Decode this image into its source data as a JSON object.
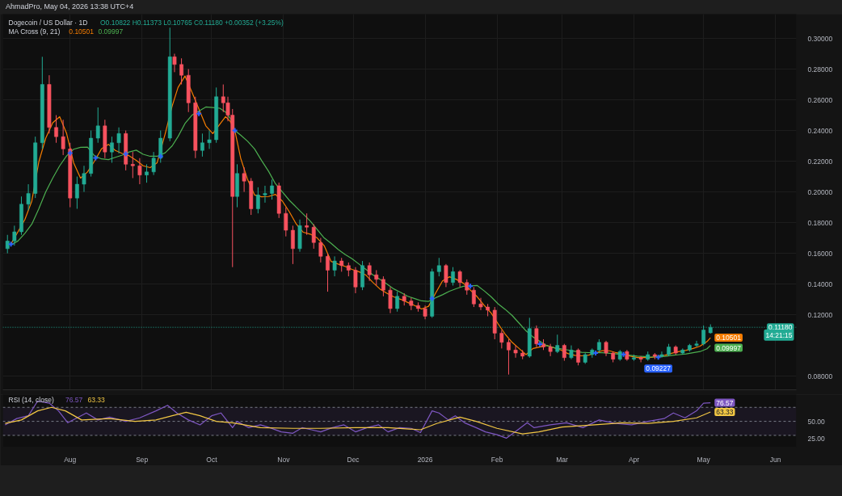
{
  "chart_data": [
    {
      "type": "candlestick",
      "title": "Dogecoin / US Dollar · 1D",
      "subtitle": "O0.10822 H0.11373 L0.10765 C0.11180 +0.00352 (+3.25%)",
      "legend_title": "MA Cross (9, 21)",
      "legend": "top left",
      "annotations": [
        "AhmadPro, May 04, 2026 13:38 UTC+4"
      ],
      "x": [
        "2025-07-05",
        "2025-07-08",
        "2025-07-11",
        "2025-07-14",
        "2025-07-17",
        "2025-07-20",
        "2025-07-23",
        "2025-07-26",
        "2025-07-29",
        "2025-08-01",
        "2025-08-04",
        "2025-08-07",
        "2025-08-10",
        "2025-08-13",
        "2025-08-16",
        "2025-08-19",
        "2025-08-22",
        "2025-08-25",
        "2025-08-28",
        "2025-08-31",
        "2025-09-03",
        "2025-09-06",
        "2025-09-09",
        "2025-09-13",
        "2025-09-15",
        "2025-09-18",
        "2025-09-21",
        "2025-09-24",
        "2025-09-27",
        "2025-09-30",
        "2025-10-03",
        "2025-10-06",
        "2025-10-08",
        "2025-10-10",
        "2025-10-12",
        "2025-10-15",
        "2025-10-18",
        "2025-10-21",
        "2025-10-24",
        "2025-10-27",
        "2025-10-30",
        "2025-11-02",
        "2025-11-05",
        "2025-11-08",
        "2025-11-11",
        "2025-11-14",
        "2025-11-17",
        "2025-11-20",
        "2025-11-23",
        "2025-11-26",
        "2025-11-29",
        "2025-12-02",
        "2025-12-05",
        "2025-12-08",
        "2025-12-11",
        "2025-12-14",
        "2025-12-17",
        "2025-12-20",
        "2025-12-23",
        "2025-12-26",
        "2025-12-29",
        "2026-01-01",
        "2026-01-04",
        "2026-01-07",
        "2026-01-10",
        "2026-01-13",
        "2026-01-16",
        "2026-01-19",
        "2026-01-22",
        "2026-01-25",
        "2026-01-28",
        "2026-01-31",
        "2026-02-03",
        "2026-02-06",
        "2026-02-09",
        "2026-02-12",
        "2026-02-15",
        "2026-02-18",
        "2026-02-21",
        "2026-02-24",
        "2026-02-27",
        "2026-03-02",
        "2026-03-05",
        "2026-03-08",
        "2026-03-11",
        "2026-03-14",
        "2026-03-17",
        "2026-03-20",
        "2026-03-23",
        "2026-03-26",
        "2026-03-29",
        "2026-04-01",
        "2026-04-04",
        "2026-04-07",
        "2026-04-10",
        "2026-04-13",
        "2026-04-16",
        "2026-04-19",
        "2026-04-22",
        "2026-04-25",
        "2026-04-28",
        "2026-05-01",
        "2026-05-04"
      ],
      "ohlc": [
        [
          0.163,
          0.172,
          0.16,
          0.168
        ],
        [
          0.168,
          0.178,
          0.165,
          0.174
        ],
        [
          0.174,
          0.197,
          0.172,
          0.192
        ],
        [
          0.192,
          0.205,
          0.188,
          0.199
        ],
        [
          0.199,
          0.236,
          0.196,
          0.232
        ],
        [
          0.232,
          0.288,
          0.228,
          0.27
        ],
        [
          0.27,
          0.276,
          0.238,
          0.242
        ],
        [
          0.242,
          0.25,
          0.232,
          0.236
        ],
        [
          0.236,
          0.247,
          0.224,
          0.228
        ],
        [
          0.228,
          0.232,
          0.19,
          0.196
        ],
        [
          0.196,
          0.21,
          0.189,
          0.205
        ],
        [
          0.205,
          0.217,
          0.2,
          0.212
        ],
        [
          0.212,
          0.24,
          0.21,
          0.235
        ],
        [
          0.235,
          0.255,
          0.232,
          0.243
        ],
        [
          0.243,
          0.247,
          0.222,
          0.226
        ],
        [
          0.226,
          0.236,
          0.219,
          0.232
        ],
        [
          0.232,
          0.242,
          0.225,
          0.238
        ],
        [
          0.238,
          0.24,
          0.214,
          0.218
        ],
        [
          0.218,
          0.226,
          0.209,
          0.217
        ],
        [
          0.217,
          0.222,
          0.205,
          0.211
        ],
        [
          0.211,
          0.218,
          0.206,
          0.213
        ],
        [
          0.213,
          0.226,
          0.211,
          0.222
        ],
        [
          0.222,
          0.24,
          0.219,
          0.235
        ],
        [
          0.235,
          0.307,
          0.233,
          0.288
        ],
        [
          0.288,
          0.29,
          0.278,
          0.283
        ],
        [
          0.283,
          0.287,
          0.27,
          0.276
        ],
        [
          0.276,
          0.28,
          0.252,
          0.258
        ],
        [
          0.258,
          0.262,
          0.222,
          0.227
        ],
        [
          0.227,
          0.238,
          0.223,
          0.232
        ],
        [
          0.232,
          0.24,
          0.228,
          0.234
        ],
        [
          0.234,
          0.268,
          0.232,
          0.262
        ],
        [
          0.262,
          0.27,
          0.252,
          0.258
        ],
        [
          0.258,
          0.262,
          0.246,
          0.25
        ],
        [
          0.25,
          0.254,
          0.151,
          0.197
        ],
        [
          0.197,
          0.218,
          0.19,
          0.212
        ],
        [
          0.212,
          0.216,
          0.2,
          0.207
        ],
        [
          0.207,
          0.209,
          0.185,
          0.189
        ],
        [
          0.189,
          0.203,
          0.186,
          0.198
        ],
        [
          0.198,
          0.204,
          0.193,
          0.199
        ],
        [
          0.199,
          0.208,
          0.195,
          0.204
        ],
        [
          0.204,
          0.206,
          0.183,
          0.186
        ],
        [
          0.186,
          0.19,
          0.171,
          0.175
        ],
        [
          0.175,
          0.178,
          0.153,
          0.163
        ],
        [
          0.163,
          0.182,
          0.161,
          0.178
        ],
        [
          0.178,
          0.186,
          0.172,
          0.177
        ],
        [
          0.177,
          0.179,
          0.163,
          0.167
        ],
        [
          0.167,
          0.17,
          0.154,
          0.158
        ],
        [
          0.158,
          0.16,
          0.135,
          0.149
        ],
        [
          0.149,
          0.158,
          0.145,
          0.155
        ],
        [
          0.155,
          0.157,
          0.148,
          0.152
        ],
        [
          0.152,
          0.154,
          0.145,
          0.149
        ],
        [
          0.149,
          0.151,
          0.134,
          0.138
        ],
        [
          0.138,
          0.155,
          0.136,
          0.152
        ],
        [
          0.152,
          0.154,
          0.142,
          0.146
        ],
        [
          0.146,
          0.149,
          0.139,
          0.143
        ],
        [
          0.143,
          0.145,
          0.132,
          0.136
        ],
        [
          0.136,
          0.138,
          0.121,
          0.124
        ],
        [
          0.124,
          0.135,
          0.122,
          0.132
        ],
        [
          0.132,
          0.134,
          0.126,
          0.129
        ],
        [
          0.129,
          0.131,
          0.123,
          0.126
        ],
        [
          0.126,
          0.128,
          0.122,
          0.124
        ],
        [
          0.124,
          0.126,
          0.117,
          0.119
        ],
        [
          0.119,
          0.15,
          0.118,
          0.148
        ],
        [
          0.148,
          0.157,
          0.145,
          0.152
        ],
        [
          0.152,
          0.153,
          0.138,
          0.141
        ],
        [
          0.141,
          0.151,
          0.139,
          0.148
        ],
        [
          0.148,
          0.149,
          0.138,
          0.141
        ],
        [
          0.141,
          0.143,
          0.133,
          0.136
        ],
        [
          0.136,
          0.138,
          0.125,
          0.127
        ],
        [
          0.127,
          0.131,
          0.123,
          0.125
        ],
        [
          0.125,
          0.127,
          0.119,
          0.123
        ],
        [
          0.123,
          0.125,
          0.104,
          0.108
        ],
        [
          0.108,
          0.11,
          0.098,
          0.102
        ],
        [
          0.102,
          0.104,
          0.081,
          0.097
        ],
        [
          0.097,
          0.1,
          0.092,
          0.095
        ],
        [
          0.095,
          0.097,
          0.091,
          0.093
        ],
        [
          0.093,
          0.118,
          0.092,
          0.111
        ],
        [
          0.111,
          0.113,
          0.099,
          0.101
        ],
        [
          0.101,
          0.104,
          0.097,
          0.099
        ],
        [
          0.099,
          0.101,
          0.093,
          0.096
        ],
        [
          0.096,
          0.107,
          0.095,
          0.1
        ],
        [
          0.1,
          0.101,
          0.09,
          0.092
        ],
        [
          0.092,
          0.1,
          0.091,
          0.097
        ],
        [
          0.097,
          0.098,
          0.087,
          0.089
        ],
        [
          0.089,
          0.095,
          0.088,
          0.094
        ],
        [
          0.094,
          0.098,
          0.092,
          0.097
        ],
        [
          0.097,
          0.104,
          0.096,
          0.102
        ],
        [
          0.102,
          0.103,
          0.093,
          0.095
        ],
        [
          0.095,
          0.096,
          0.089,
          0.091
        ],
        [
          0.091,
          0.097,
          0.09,
          0.096
        ],
        [
          0.096,
          0.097,
          0.09,
          0.091
        ],
        [
          0.091,
          0.094,
          0.09,
          0.092
        ],
        [
          0.092,
          0.093,
          0.089,
          0.091
        ],
        [
          0.091,
          0.096,
          0.09,
          0.094
        ],
        [
          0.094,
          0.095,
          0.091,
          0.093
        ],
        [
          0.093,
          0.096,
          0.092,
          0.094
        ],
        [
          0.094,
          0.101,
          0.093,
          0.099
        ],
        [
          0.099,
          0.1,
          0.094,
          0.095
        ],
        [
          0.095,
          0.098,
          0.094,
          0.097
        ],
        [
          0.097,
          0.101,
          0.096,
          0.1
        ],
        [
          0.1,
          0.103,
          0.099,
          0.101
        ],
        [
          0.101,
          0.113,
          0.1,
          0.11
        ],
        [
          0.10822,
          0.11373,
          0.10765,
          0.1118
        ]
      ],
      "colors": [
        "#22ab94",
        "#22ab94",
        "#22ab94",
        "#22ab94",
        "#22ab94",
        "#22ab94",
        "#f7525f",
        "#f7525f",
        "#f7525f",
        "#f7525f",
        "#22ab94",
        "#22ab94",
        "#22ab94",
        "#22ab94",
        "#f7525f",
        "#22ab94",
        "#22ab94",
        "#f7525f",
        "#f7525f",
        "#f7525f",
        "#22ab94",
        "#22ab94",
        "#22ab94",
        "#22ab94",
        "#f7525f",
        "#f7525f",
        "#f7525f",
        "#f7525f",
        "#22ab94",
        "#22ab94",
        "#22ab94",
        "#f7525f",
        "#f7525f",
        "#f7525f",
        "#22ab94",
        "#f7525f",
        "#f7525f",
        "#22ab94",
        "#22ab94",
        "#22ab94",
        "#f7525f",
        "#f7525f",
        "#f7525f",
        "#22ab94",
        "#f7525f",
        "#f7525f",
        "#f7525f",
        "#f7525f",
        "#22ab94",
        "#f7525f",
        "#f7525f",
        "#f7525f",
        "#22ab94",
        "#f7525f",
        "#f7525f",
        "#f7525f",
        "#f7525f",
        "#22ab94",
        "#f7525f",
        "#f7525f",
        "#f7525f",
        "#f7525f",
        "#22ab94",
        "#22ab94",
        "#f7525f",
        "#22ab94",
        "#f7525f",
        "#f7525f",
        "#f7525f",
        "#f7525f",
        "#f7525f",
        "#f7525f",
        "#f7525f",
        "#f7525f",
        "#f7525f",
        "#f7525f",
        "#22ab94",
        "#f7525f",
        "#f7525f",
        "#f7525f",
        "#22ab94",
        "#f7525f",
        "#22ab94",
        "#f7525f",
        "#22ab94",
        "#22ab94",
        "#22ab94",
        "#f7525f",
        "#f7525f",
        "#22ab94",
        "#f7525f",
        "#22ab94",
        "#f7525f",
        "#22ab94",
        "#f7525f",
        "#22ab94",
        "#22ab94",
        "#f7525f",
        "#22ab94",
        "#22ab94",
        "#22ab94",
        "#22ab94",
        "#22ab94"
      ],
      "series": [
        {
          "type": "line",
          "name": "0.10501",
          "color": "#f57c00",
          "x": [
            "2025-07-06T12:00",
            "2025-07-09T12:00",
            "2025-07-12T12:00",
            "2025-07-15T12:00",
            "2025-07-18T12:00",
            "2025-07-21T12:00",
            "2025-07-24T12:00",
            "2025-07-27T12:00",
            "2025-07-30T12:00",
            "2025-08-02T12:00",
            "2025-08-05T12:00",
            "2025-08-08T12:00",
            "2025-08-11T12:00",
            "2025-08-14T12:00",
            "2025-08-17T12:00",
            "2025-08-20T12:00",
            "2025-08-23T12:00",
            "2025-08-26T12:00",
            "2025-08-29T12:00",
            "2025-09-01T12:00",
            "2025-09-04T12:00",
            "2025-09-07T12:00",
            "2025-09-11",
            "2025-09-14",
            "2025-09-16T12:00",
            "2025-09-19T12:00",
            "2025-09-22T12:00",
            "2025-09-28T12:00",
            "2025-10-01T12:00",
            "2025-10-04T12:00",
            "2025-10-07",
            "2025-10-09",
            "2025-10-11",
            "2025-10-13T12:00",
            "2025-10-16T12:00",
            "2025-10-19T12:00",
            "2025-10-22T12:00",
            "2025-10-25T12:00",
            "2025-10-28T12:00",
            "2025-10-31T12:00",
            "2025-11-03T12:00",
            "2025-11-06T12:00",
            "2025-11-09T12:00",
            "2025-11-12T12:00",
            "2025-11-15T12:00",
            "2025-11-18T12:00",
            "2025-11-21T12:00",
            "2025-11-24T12:00",
            "2025-11-27T12:00",
            "2025-11-30T12:00",
            "2025-12-03T12:00",
            "2025-12-06T12:00",
            "2025-12-09T12:00",
            "2025-12-12T12:00",
            "2025-12-15T12:00",
            "2025-12-18T12:00",
            "2025-12-21T12:00",
            "2025-12-24T12:00",
            "2025-12-27T12:00",
            "2025-12-30T12:00",
            "2026-01-02T12:00",
            "2026-01-05T12:00",
            "2026-01-08T12:00",
            "2026-01-11T12:00",
            "2026-01-14T12:00",
            "2026-01-17T12:00",
            "2026-01-23T12:00",
            "2026-01-26T12:00",
            "2026-01-29T12:00",
            "2026-02-01T12:00",
            "2026-02-04T12:00",
            "2026-02-07T12:00",
            "2026-02-10T12:00",
            "2026-02-13T12:00",
            "2026-02-16T12:00",
            "2026-02-22T12:00",
            "2026-02-25T12:00",
            "2026-02-28T12:00",
            "2026-03-03T12:00",
            "2026-03-06T12:00",
            "2026-03-09T12:00",
            "2026-03-12T12:00",
            "2026-03-18T12:00",
            "2026-03-21T12:00",
            "2026-03-24T12:00",
            "2026-03-30T12:00",
            "2026-04-02T12:00",
            "2026-04-05T12:00",
            "2026-04-08T12:00",
            "2026-04-14T12:00",
            "2026-04-17T12:00",
            "2026-04-20T12:00",
            "2026-04-23T12:00",
            "2026-04-26T12:00",
            "2026-04-29T12:00",
            "2026-05-02T12:00",
            "2026-05-04"
          ],
          "values": [
            0.166,
            0.174,
            0.182,
            0.194,
            0.2195,
            0.235,
            0.245,
            0.249,
            0.238,
            0.219,
            0.209,
            0.213,
            0.22,
            0.228,
            0.231,
            0.227,
            0.225,
            0.2235,
            0.2205,
            0.217,
            0.2158,
            0.219,
            0.238,
            0.256,
            0.268,
            0.2755,
            0.265,
            0.243,
            0.238,
            0.244,
            0.249,
            0.246,
            0.24,
            0.222,
            0.208,
            0.198,
            0.1968,
            0.197,
            0.1984,
            0.194,
            0.187,
            0.179,
            0.1737,
            0.1725,
            0.17,
            0.165,
            0.1547,
            0.153,
            0.1515,
            0.1495,
            0.148,
            0.1458,
            0.141,
            0.1368,
            0.134,
            0.1316,
            0.13,
            0.128,
            0.126,
            0.1237,
            0.1255,
            0.134,
            0.142,
            0.1447,
            0.143,
            0.1405,
            0.1316,
            0.126,
            0.121,
            0.114,
            0.1074,
            0.102,
            0.098,
            0.094,
            0.098,
            0.1,
            0.0985,
            0.097,
            0.0947,
            0.0935,
            0.0932,
            0.0937,
            0.0966,
            0.0965,
            0.0952,
            0.093,
            0.0921,
            0.0921,
            0.0922,
            0.0937,
            0.095,
            0.096,
            0.0968,
            0.098,
            0.0995,
            0.1025,
            0.10501
          ],
          "value_labels": [
            null,
            null,
            null,
            null,
            null,
            null,
            null,
            null,
            null,
            null,
            null,
            null,
            null,
            null,
            null,
            null,
            null,
            null,
            null,
            null,
            null,
            null,
            null,
            null,
            null,
            null,
            null,
            null,
            null,
            null,
            null,
            null,
            null,
            null,
            null,
            null,
            null,
            null,
            null,
            null,
            null,
            null,
            null,
            null,
            null,
            null,
            null,
            null,
            null,
            null,
            null,
            null,
            null,
            null,
            null,
            null,
            null,
            null,
            null,
            null,
            null,
            null,
            null,
            null,
            null,
            null,
            null,
            null,
            null,
            null,
            null,
            null,
            null,
            null,
            null,
            null,
            null,
            null,
            null,
            null,
            null,
            null,
            null,
            null,
            null,
            null,
            null,
            null,
            null,
            null,
            null,
            null,
            null,
            null,
            null,
            null,
            "0.10501"
          ]
        },
        {
          "type": "line",
          "name": "0.09997",
          "color": "#4caf50",
          "x": [
            "2025-07-06T12:00",
            "2025-07-09T12:00",
            "2025-07-12T12:00",
            "2025-07-15T12:00",
            "2025-07-18T12:00",
            "2025-07-21T12:00",
            "2025-07-24T12:00",
            "2025-07-27T12:00",
            "2025-07-30T12:00",
            "2025-08-02T12:00",
            "2025-08-05T12:00",
            "2025-08-08T12:00",
            "2025-08-11T12:00",
            "2025-08-14T12:00",
            "2025-08-17T12:00",
            "2025-08-20T12:00",
            "2025-08-23T12:00",
            "2025-08-26T12:00",
            "2025-08-29T12:00",
            "2025-09-01T12:00",
            "2025-09-04T12:00",
            "2025-09-07T12:00",
            "2025-09-11",
            "2025-09-14",
            "2025-09-16T12:00",
            "2025-09-19T12:00",
            "2025-09-22T12:00",
            "2025-09-28T12:00",
            "2025-10-01T12:00",
            "2025-10-04T12:00",
            "2025-10-07",
            "2025-10-09",
            "2025-10-11",
            "2025-10-13T12:00",
            "2025-10-16T12:00",
            "2025-10-19T12:00",
            "2025-10-22T12:00",
            "2025-10-25T12:00",
            "2025-10-28T12:00",
            "2025-10-31T12:00",
            "2025-11-03T12:00",
            "2025-11-06T12:00",
            "2025-11-09T12:00",
            "2025-11-12T12:00",
            "2025-11-15T12:00",
            "2025-11-18T12:00",
            "2025-11-21T12:00",
            "2025-11-24T12:00",
            "2025-11-27T12:00",
            "2025-11-30T12:00",
            "2025-12-03T12:00",
            "2025-12-06T12:00",
            "2025-12-09T12:00",
            "2025-12-12T12:00",
            "2025-12-15T12:00",
            "2025-12-18T12:00",
            "2025-12-21T12:00",
            "2025-12-24T12:00",
            "2025-12-27T12:00",
            "2025-12-30T12:00",
            "2026-01-02T12:00",
            "2026-01-05T12:00",
            "2026-01-08T12:00",
            "2026-01-11T12:00",
            "2026-01-14T12:00",
            "2026-01-17T12:00",
            "2026-01-23T12:00",
            "2026-01-26T12:00",
            "2026-01-29T12:00",
            "2026-02-01T12:00",
            "2026-02-04T12:00",
            "2026-02-07T12:00",
            "2026-02-10T12:00",
            "2026-02-13T12:00",
            "2026-02-16T12:00",
            "2026-02-22T12:00",
            "2026-02-25T12:00",
            "2026-02-28T12:00",
            "2026-03-03T12:00",
            "2026-03-06T12:00",
            "2026-03-09T12:00",
            "2026-03-12T12:00",
            "2026-03-18T12:00",
            "2026-03-21T12:00",
            "2026-03-24T12:00",
            "2026-03-30T12:00",
            "2026-04-02T12:00",
            "2026-04-05T12:00",
            "2026-04-08T12:00",
            "2026-04-14T12:00",
            "2026-04-17T12:00",
            "2026-04-20T12:00",
            "2026-04-23T12:00",
            "2026-04-26T12:00",
            "2026-04-29T12:00",
            "2026-05-02T12:00",
            "2026-05-04"
          ],
          "values": [
            0.1655,
            0.168,
            0.173,
            0.179,
            0.189,
            0.2,
            0.209,
            0.217,
            0.2235,
            0.2278,
            0.229,
            0.2292,
            0.2235,
            0.2215,
            0.221,
            0.2225,
            0.224,
            0.226,
            0.2272,
            0.2245,
            0.2232,
            0.2232,
            0.2255,
            0.23,
            0.236,
            0.2445,
            0.25,
            0.2553,
            0.255,
            0.2545,
            0.252,
            0.248,
            0.24,
            0.237,
            0.233,
            0.228,
            0.2205,
            0.2135,
            0.2053,
            0.2,
            0.1945,
            0.19,
            0.1855,
            0.181,
            0.1755,
            0.17,
            0.1665,
            0.1625,
            0.1592,
            0.1565,
            0.153,
            0.1495,
            0.146,
            0.143,
            0.14,
            0.1368,
            0.1345,
            0.132,
            0.1305,
            0.129,
            0.1287,
            0.131,
            0.133,
            0.1353,
            0.137,
            0.1385,
            0.139,
            0.1355,
            0.1316,
            0.127,
            0.1235,
            0.1195,
            0.1145,
            0.1095,
            0.1055,
            0.0998,
            0.0985,
            0.0978,
            0.097,
            0.0962,
            0.0955,
            0.0953,
            0.0952,
            0.0948,
            0.0945,
            0.0935,
            0.093,
            0.0927,
            0.0924,
            0.0929,
            0.0935,
            0.094,
            0.0945,
            0.0952,
            0.096,
            0.0978,
            0.09997
          ],
          "value_labels": [
            null,
            null,
            null,
            null,
            null,
            null,
            null,
            null,
            null,
            null,
            null,
            null,
            null,
            null,
            null,
            null,
            null,
            null,
            null,
            null,
            null,
            null,
            null,
            null,
            null,
            null,
            null,
            null,
            null,
            null,
            null,
            null,
            null,
            null,
            null,
            null,
            null,
            null,
            null,
            null,
            null,
            null,
            null,
            null,
            null,
            null,
            null,
            null,
            null,
            null,
            null,
            null,
            null,
            null,
            null,
            null,
            null,
            null,
            null,
            null,
            null,
            null,
            null,
            null,
            null,
            null,
            null,
            null,
            null,
            null,
            null,
            null,
            null,
            null,
            null,
            null,
            null,
            null,
            null,
            null,
            null,
            null,
            null,
            null,
            null,
            null,
            null,
            null,
            null,
            null,
            null,
            null,
            null,
            null,
            null,
            null,
            "0.09997"
          ]
        },
        {
          "type": "scatter",
          "marker": "cross",
          "color": "#2962ff",
          "x": [
            "2025-07-06T12:00",
            "2025-08-01",
            "2025-08-12",
            "2025-08-25",
            "2025-09-09",
            "2025-09-25T12:00",
            "2025-10-11",
            "2026-01-04",
            "2026-01-20T12:00",
            "2026-02-19T12:00",
            "2026-03-15T12:00",
            "2026-03-27T12:00",
            "2026-04-11T12:00"
          ],
          "values": [
            0.166,
            0.2253,
            0.2221,
            0.2247,
            0.2232,
            0.251,
            0.24,
            0.1305,
            0.1386,
            0.1008,
            0.095,
            0.0941,
            0.09227
          ],
          "value_labels": [
            null,
            null,
            null,
            null,
            null,
            null,
            null,
            null,
            null,
            null,
            null,
            null,
            "0.09227"
          ]
        }
      ],
      "xlim": [
        "2025-07-03",
        "2026-06-10"
      ],
      "xticks": [
        {
          "value": "2025-08-01",
          "label": null
        },
        {
          "value": "2025-09-01",
          "label": null
        },
        {
          "value": "2025-10-01",
          "label": null
        },
        {
          "value": "2025-11-01",
          "label": null
        },
        {
          "value": "2025-12-01",
          "label": null
        },
        {
          "value": "2026-01-01",
          "label": null
        },
        {
          "value": "2026-02-01",
          "label": null
        },
        {
          "value": "2026-03-01",
          "label": null
        },
        {
          "value": "2026-04-01",
          "label": null
        },
        {
          "value": "2026-05-01",
          "label": null
        },
        {
          "value": "2026-06-01",
          "label": null
        }
      ],
      "ylim": [
        0.0711,
        0.3158
      ],
      "yticks": [
        {
          "value": 0.08,
          "label": "0.08000"
        },
        {
          "value": 0.12,
          "label": "0.12000"
        },
        {
          "value": 0.14,
          "label": "0.14000"
        },
        {
          "value": 0.16,
          "label": "0.16000"
        },
        {
          "value": 0.18,
          "label": "0.18000"
        },
        {
          "value": 0.2,
          "label": "0.20000"
        },
        {
          "value": 0.22,
          "label": "0.22000"
        },
        {
          "value": 0.24,
          "label": "0.24000"
        },
        {
          "value": 0.26,
          "label": "0.26000"
        },
        {
          "value": 0.28,
          "label": "0.28000"
        },
        {
          "value": 0.3,
          "label": "0.30000"
        }
      ],
      "ref_lines": [
        {
          "axis": "y",
          "value": 0.1118,
          "label": "0.11180\n14:21:15",
          "color": "#22ab94",
          "line_style": "dotted"
        }
      ],
      "grid": true,
      "tick_labels": "y"
    },
    {
      "type": "line",
      "legend_title": "RSI (14, close)",
      "legend": "top left",
      "series": [
        {
          "name": "76.57",
          "color": "#7e57c2",
          "x": [
            "2025-07-04",
            "2025-07-09",
            "2025-07-14",
            "2025-07-18",
            "2025-07-23",
            "2025-07-27",
            "2025-07-31",
            "2025-08-04",
            "2025-08-08",
            "2025-08-13",
            "2025-08-18",
            "2025-08-25",
            "2025-08-31",
            "2025-09-07",
            "2025-09-12",
            "2025-09-16",
            "2025-09-21",
            "2025-09-26",
            "2025-10-01",
            "2025-10-05",
            "2025-10-10",
            "2025-10-12",
            "2025-10-17",
            "2025-10-22",
            "2025-10-26",
            "2025-10-31",
            "2025-11-05",
            "2025-11-09",
            "2025-11-13",
            "2025-11-17",
            "2025-11-22",
            "2025-11-27",
            "2025-12-02",
            "2025-12-07",
            "2025-12-12",
            "2025-12-16",
            "2025-12-21",
            "2025-12-26",
            "2025-12-30",
            "2026-01-04",
            "2026-01-07",
            "2026-01-11",
            "2026-01-14",
            "2026-01-18",
            "2026-01-23",
            "2026-01-27",
            "2026-02-01",
            "2026-02-05",
            "2026-02-10",
            "2026-02-14",
            "2026-02-17",
            "2026-02-24",
            "2026-03-03",
            "2026-03-10",
            "2026-03-17",
            "2026-03-24",
            "2026-03-31",
            "2026-04-07",
            "2026-04-14",
            "2026-04-18",
            "2026-04-23",
            "2026-04-28",
            "2026-05-01",
            "2026-05-04"
          ],
          "values": [
            45,
            54,
            58,
            79,
            76,
            65,
            48,
            55,
            62,
            52,
            56,
            50,
            55,
            65,
            73,
            62,
            52,
            45,
            58,
            62,
            41,
            50,
            41,
            45,
            41,
            35,
            33,
            41,
            38,
            35,
            41,
            45,
            35,
            41,
            45,
            35,
            41,
            40,
            34,
            65,
            62,
            52,
            58,
            48,
            41,
            35,
            31,
            26,
            38,
            48,
            41,
            45,
            48,
            41,
            52,
            47,
            45,
            50,
            54,
            62,
            55,
            65,
            76,
            76.57
          ],
          "value_labels": [
            null,
            null,
            null,
            null,
            null,
            null,
            null,
            null,
            null,
            null,
            null,
            null,
            null,
            null,
            null,
            null,
            null,
            null,
            null,
            null,
            null,
            null,
            null,
            null,
            null,
            null,
            null,
            null,
            null,
            null,
            null,
            null,
            null,
            null,
            null,
            null,
            null,
            null,
            null,
            null,
            null,
            null,
            null,
            null,
            null,
            null,
            null,
            null,
            null,
            null,
            null,
            null,
            null,
            null,
            null,
            null,
            null,
            null,
            null,
            null,
            null,
            null,
            null,
            "76.57"
          ]
        },
        {
          "name": "63.33",
          "color": "#f2c744",
          "x": [
            "2025-07-04",
            "2025-07-11",
            "2025-07-18",
            "2025-07-24",
            "2025-07-30",
            "2025-08-06",
            "2025-08-18",
            "2025-08-29",
            "2025-09-07",
            "2025-09-14",
            "2025-09-20",
            "2025-09-26",
            "2025-10-03",
            "2025-10-10",
            "2025-10-22",
            "2025-11-05",
            "2025-11-17",
            "2025-12-02",
            "2025-12-16",
            "2025-12-30",
            "2026-01-06",
            "2026-01-16",
            "2026-01-23",
            "2026-02-01",
            "2026-02-12",
            "2026-02-19",
            "2026-03-01",
            "2026-03-15",
            "2026-03-27",
            "2026-04-07",
            "2026-04-18",
            "2026-04-28",
            "2026-05-04"
          ],
          "values": [
            47,
            52,
            65,
            70,
            65,
            52,
            54,
            50,
            52,
            58,
            63,
            58,
            50,
            48,
            41,
            40,
            40,
            41,
            41,
            38,
            47,
            56,
            50,
            40,
            32,
            35,
            42,
            45,
            48,
            47,
            50,
            55,
            63.33
          ],
          "value_labels": [
            null,
            null,
            null,
            null,
            null,
            null,
            null,
            null,
            null,
            null,
            null,
            null,
            null,
            null,
            null,
            null,
            null,
            null,
            null,
            null,
            null,
            null,
            null,
            null,
            null,
            null,
            null,
            null,
            null,
            null,
            null,
            null,
            "63.33"
          ]
        }
      ],
      "xlim": [
        "2025-07-03",
        "2026-06-10"
      ],
      "xticks": [
        {
          "value": "2025-08-01",
          "label": "Aug"
        },
        {
          "value": "2025-09-01",
          "label": "Sep"
        },
        {
          "value": "2025-10-01",
          "label": "Oct"
        },
        {
          "value": "2025-11-01",
          "label": "Nov"
        },
        {
          "value": "2025-12-01",
          "label": "Dec"
        },
        {
          "value": "2026-01-01",
          "label": "2026"
        },
        {
          "value": "2026-02-01",
          "label": "Feb"
        },
        {
          "value": "2026-03-01",
          "label": "Mar"
        },
        {
          "value": "2026-04-01",
          "label": "Apr"
        },
        {
          "value": "2026-05-01",
          "label": "May"
        },
        {
          "value": "2026-06-01",
          "label": "Jun"
        }
      ],
      "ylim": [
        13.2,
        88.2
      ],
      "yticks": [
        {
          "value": 25,
          "label": "25.00"
        },
        {
          "value": 50,
          "label": "50.00"
        }
      ],
      "ref_lines": [
        {
          "axis": "y",
          "value": 70,
          "color": "#787b86",
          "line_style": "dashed"
        },
        {
          "axis": "y",
          "value": 50,
          "color": "#787b86",
          "line_style": "dashed"
        },
        {
          "axis": "y",
          "value": 30,
          "color": "#787b86",
          "line_style": "dashed"
        }
      ],
      "bands": [
        {
          "axis": "y",
          "from": 30,
          "to": 70,
          "color": "#7e57c2"
        }
      ]
    }
  ]
}
